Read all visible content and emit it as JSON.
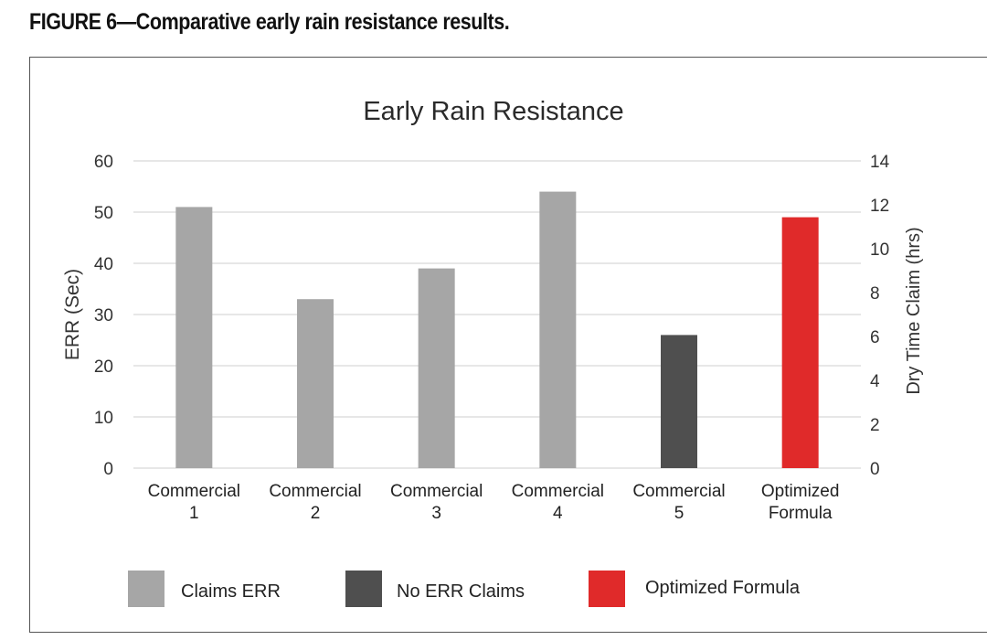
{
  "figure_caption": "FIGURE 6—Comparative early rain resistance results.",
  "chart_data": {
    "type": "bar",
    "title": "Early Rain Resistance",
    "ylabel": "ERR (Sec)",
    "y2label": "Dry Time Claim (hrs)",
    "ylim": [
      0,
      60
    ],
    "y2lim": [
      0,
      14
    ],
    "yticks": [
      0,
      10,
      20,
      30,
      40,
      50,
      60
    ],
    "y2ticks": [
      0,
      2,
      4,
      6,
      8,
      10,
      12,
      14
    ],
    "grid": true,
    "legend_position": "bottom",
    "categories": [
      [
        "Commercial",
        "1"
      ],
      [
        "Commercial",
        "2"
      ],
      [
        "Commercial",
        "3"
      ],
      [
        "Commercial",
        "4"
      ],
      [
        "Commercial",
        "5"
      ],
      [
        "Optimized",
        "Formula"
      ]
    ],
    "values": [
      51,
      33,
      39,
      54,
      26,
      49
    ],
    "bar_groups": [
      "Claims ERR",
      "Claims ERR",
      "Claims ERR",
      "Claims ERR",
      "No ERR Claims",
      "Optimized Formula"
    ],
    "legend": [
      {
        "name": "Claims ERR",
        "color": "#a6a6a6"
      },
      {
        "name": "No ERR Claims",
        "color": "#4f4f4f"
      },
      {
        "name": "Optimized Formula",
        "color": "#e02a2a"
      }
    ]
  }
}
